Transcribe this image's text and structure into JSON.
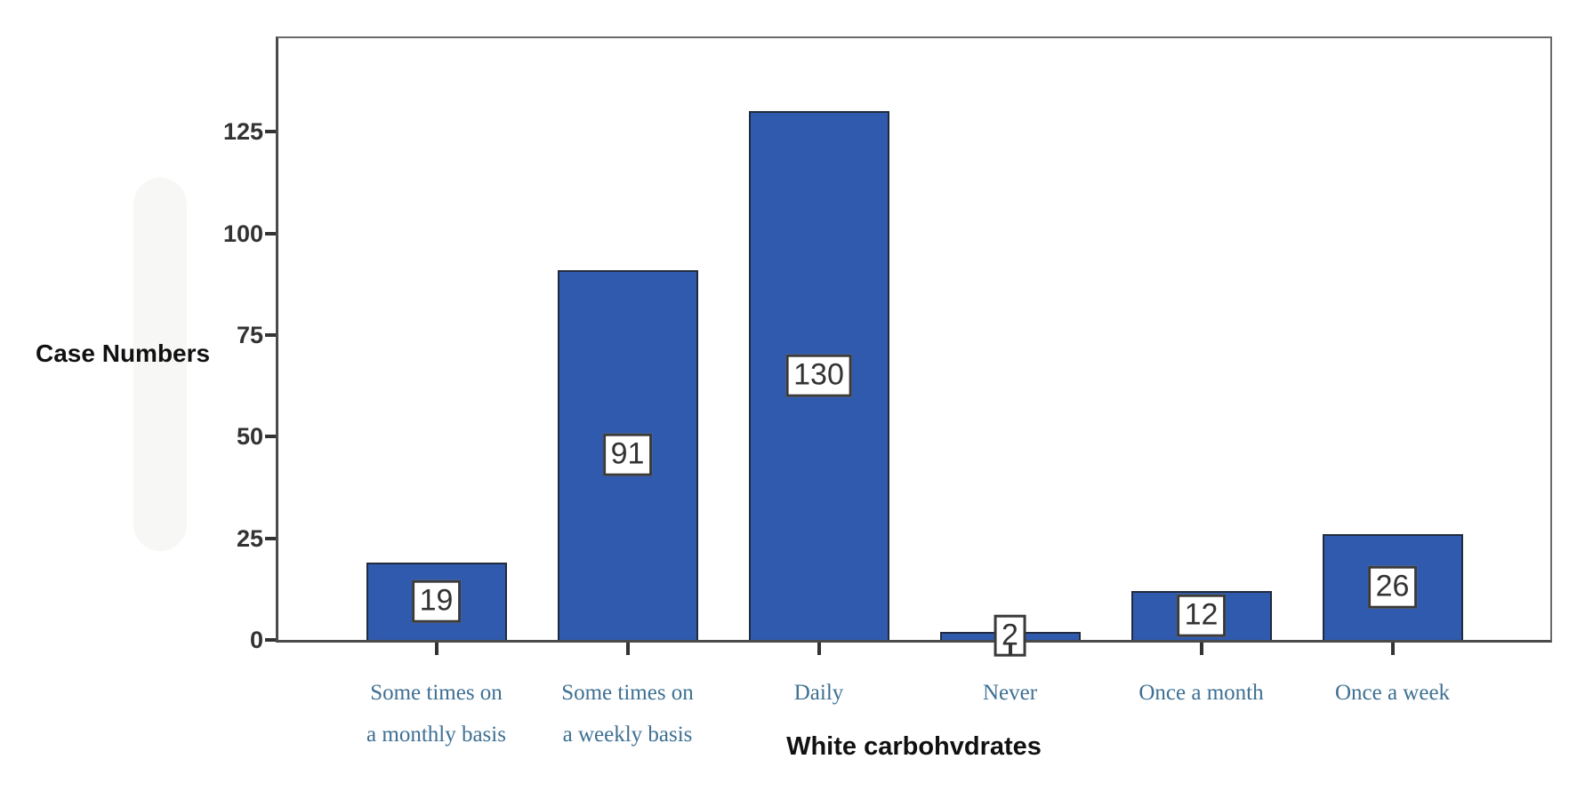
{
  "chart_data": {
    "type": "bar",
    "title": "",
    "xlabel": "White carbohvdrates",
    "ylabel": "Case Numbers",
    "categories": [
      "Some times on\na monthly basis",
      "Some times on\na weekly basis",
      "Daily",
      "Never",
      "Once a month",
      "Once a week"
    ],
    "values": [
      19,
      91,
      130,
      2,
      12,
      26
    ],
    "yticks": [
      0,
      25,
      50,
      75,
      100,
      125
    ],
    "ylim": [
      0,
      148
    ],
    "grid": false,
    "legend_position": "none",
    "bar_color": "#2f5aae",
    "bar_border_color": "#202c3e",
    "value_box_bg": "#ffffff",
    "value_box_border": "#3a3a3a",
    "value_text_color": "#333333",
    "category_label_color": "#3e7093",
    "axis_line_color": "#4a4a4a",
    "frame_color": "#6a6a6a"
  }
}
